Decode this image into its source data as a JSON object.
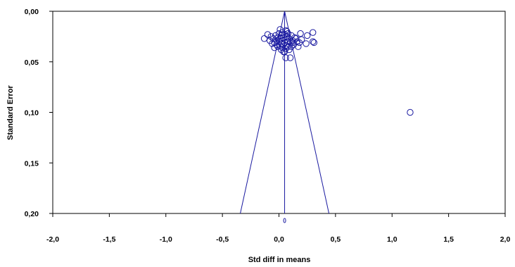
{
  "chart_data": {
    "type": "scatter",
    "xlabel": "Std diff in means",
    "ylabel": "Standard Error",
    "xlim": [
      -2.0,
      2.0
    ],
    "ylim": [
      0.0,
      0.2
    ],
    "y_inverted": true,
    "x_ticks": [
      "-2,0",
      "-1,5",
      "-1,0",
      "-0,5",
      "0,0",
      "0,5",
      "1,0",
      "1,5",
      "2,0"
    ],
    "x_tick_values": [
      -2.0,
      -1.5,
      -1.0,
      -0.5,
      0.0,
      0.5,
      1.0,
      1.5,
      2.0
    ],
    "y_ticks": [
      "0,00",
      "0,05",
      "0,10",
      "0,15",
      "0,20"
    ],
    "y_tick_values": [
      0.0,
      0.05,
      0.1,
      0.15,
      0.2
    ],
    "pooled_effect": 0.05,
    "funnel_z": 1.96,
    "grid": false,
    "marker": "open-circle",
    "color": "#1a1aa0",
    "points": [
      {
        "x": 1.16,
        "y": 0.1
      },
      {
        "x": 0.3,
        "y": 0.021
      },
      {
        "x": 0.31,
        "y": 0.031
      },
      {
        "x": 0.3,
        "y": 0.03
      },
      {
        "x": 0.25,
        "y": 0.024
      },
      {
        "x": 0.24,
        "y": 0.032
      },
      {
        "x": 0.2,
        "y": 0.028
      },
      {
        "x": 0.19,
        "y": 0.022
      },
      {
        "x": 0.17,
        "y": 0.035
      },
      {
        "x": 0.16,
        "y": 0.03
      },
      {
        "x": 0.14,
        "y": 0.026
      },
      {
        "x": 0.13,
        "y": 0.033
      },
      {
        "x": 0.12,
        "y": 0.029
      },
      {
        "x": 0.11,
        "y": 0.024
      },
      {
        "x": 0.11,
        "y": 0.035
      },
      {
        "x": 0.1,
        "y": 0.031
      },
      {
        "x": 0.09,
        "y": 0.027
      },
      {
        "x": 0.09,
        "y": 0.038
      },
      {
        "x": 0.08,
        "y": 0.022
      },
      {
        "x": 0.08,
        "y": 0.03
      },
      {
        "x": 0.07,
        "y": 0.025
      },
      {
        "x": 0.07,
        "y": 0.034
      },
      {
        "x": 0.06,
        "y": 0.019
      },
      {
        "x": 0.06,
        "y": 0.028
      },
      {
        "x": 0.06,
        "y": 0.037
      },
      {
        "x": 0.05,
        "y": 0.023
      },
      {
        "x": 0.05,
        "y": 0.031
      },
      {
        "x": 0.05,
        "y": 0.04
      },
      {
        "x": 0.04,
        "y": 0.026
      },
      {
        "x": 0.04,
        "y": 0.033
      },
      {
        "x": 0.03,
        "y": 0.021
      },
      {
        "x": 0.03,
        "y": 0.029
      },
      {
        "x": 0.03,
        "y": 0.036
      },
      {
        "x": 0.02,
        "y": 0.024
      },
      {
        "x": 0.02,
        "y": 0.032
      },
      {
        "x": 0.01,
        "y": 0.027
      },
      {
        "x": 0.01,
        "y": 0.034
      },
      {
        "x": 0.0,
        "y": 0.022
      },
      {
        "x": 0.0,
        "y": 0.03
      },
      {
        "x": -0.01,
        "y": 0.026
      },
      {
        "x": -0.02,
        "y": 0.033
      },
      {
        "x": -0.02,
        "y": 0.029
      },
      {
        "x": -0.03,
        "y": 0.024
      },
      {
        "x": -0.04,
        "y": 0.031
      },
      {
        "x": -0.04,
        "y": 0.036
      },
      {
        "x": -0.05,
        "y": 0.027
      },
      {
        "x": -0.06,
        "y": 0.032
      },
      {
        "x": -0.07,
        "y": 0.025
      },
      {
        "x": -0.08,
        "y": 0.029
      },
      {
        "x": -0.1,
        "y": 0.023
      },
      {
        "x": -0.13,
        "y": 0.027
      },
      {
        "x": 0.04,
        "y": 0.04
      },
      {
        "x": 0.06,
        "y": 0.046
      },
      {
        "x": 0.1,
        "y": 0.046
      },
      {
        "x": 0.02,
        "y": 0.038
      },
      {
        "x": 0.15,
        "y": 0.027
      },
      {
        "x": 0.12,
        "y": 0.031
      },
      {
        "x": 0.08,
        "y": 0.035
      },
      {
        "x": 0.01,
        "y": 0.018
      },
      {
        "x": 0.07,
        "y": 0.02
      },
      {
        "x": -0.01,
        "y": 0.035
      },
      {
        "x": 0.18,
        "y": 0.031
      }
    ],
    "extra_points": [
      {
        "x": 0.05,
        "y": 0.207
      }
    ]
  }
}
